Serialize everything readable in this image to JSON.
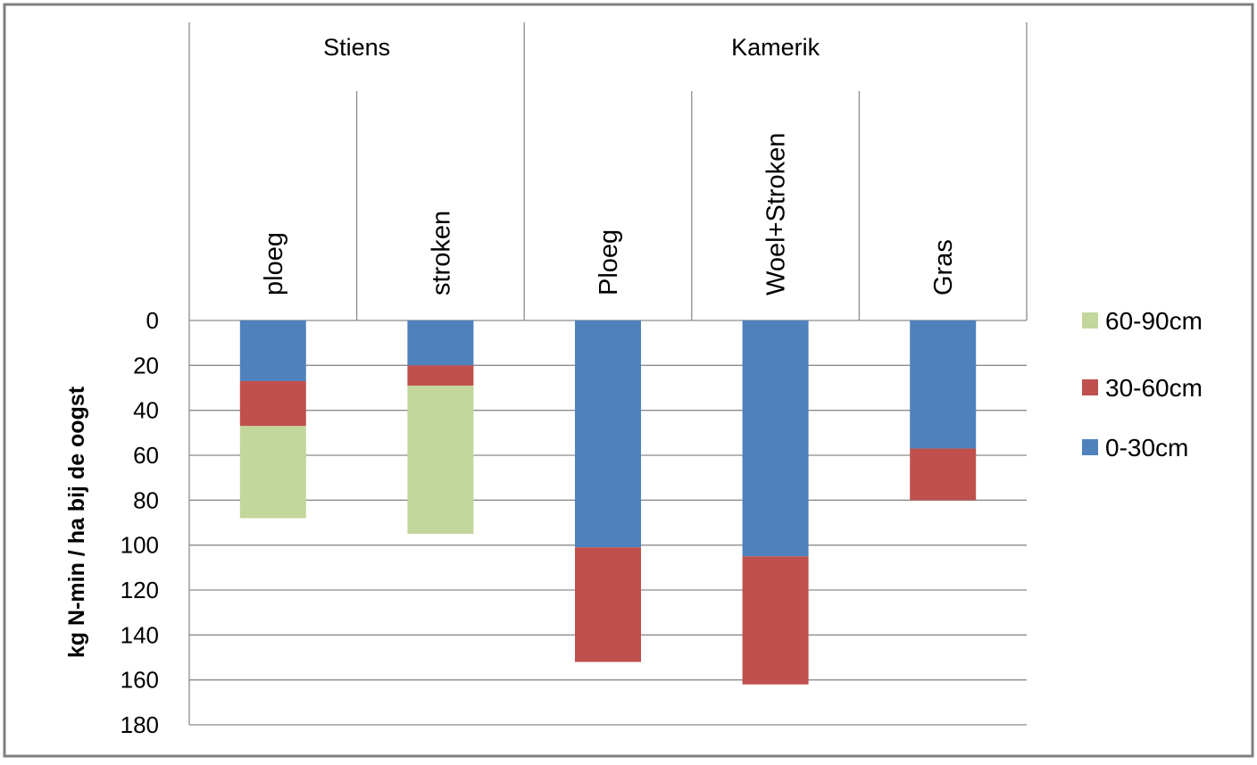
{
  "chart_data": {
    "type": "bar",
    "stacked": true,
    "y_axis_inverted": true,
    "ylabel": "kg N-min / ha bij de oogst",
    "ylim": [
      0,
      180
    ],
    "y_ticks": [
      "0",
      "20",
      "40",
      "60",
      "80",
      "100",
      "120",
      "140",
      "160",
      "180"
    ],
    "grid": true,
    "legend_position": "right",
    "groups": [
      {
        "name": "Stiens",
        "categories": [
          "ploeg",
          "stroken"
        ]
      },
      {
        "name": "Kamerik",
        "categories": [
          "Ploeg",
          "Woel+Stroken",
          "Gras"
        ]
      }
    ],
    "categories": [
      "ploeg",
      "stroken",
      "Ploeg",
      "Woel+Stroken",
      "Gras"
    ],
    "series": [
      {
        "name": "0-30cm",
        "color": "#4f81bd",
        "values": [
          27,
          20,
          101,
          105,
          57
        ]
      },
      {
        "name": "30-60cm",
        "color": "#c0504d",
        "values": [
          20,
          9,
          51,
          57,
          23
        ]
      },
      {
        "name": "60-90cm",
        "color": "#c3d69b",
        "values": [
          41,
          66,
          0,
          0,
          0
        ]
      }
    ],
    "legend_order": [
      "60-90cm",
      "30-60cm",
      "0-30cm"
    ]
  }
}
